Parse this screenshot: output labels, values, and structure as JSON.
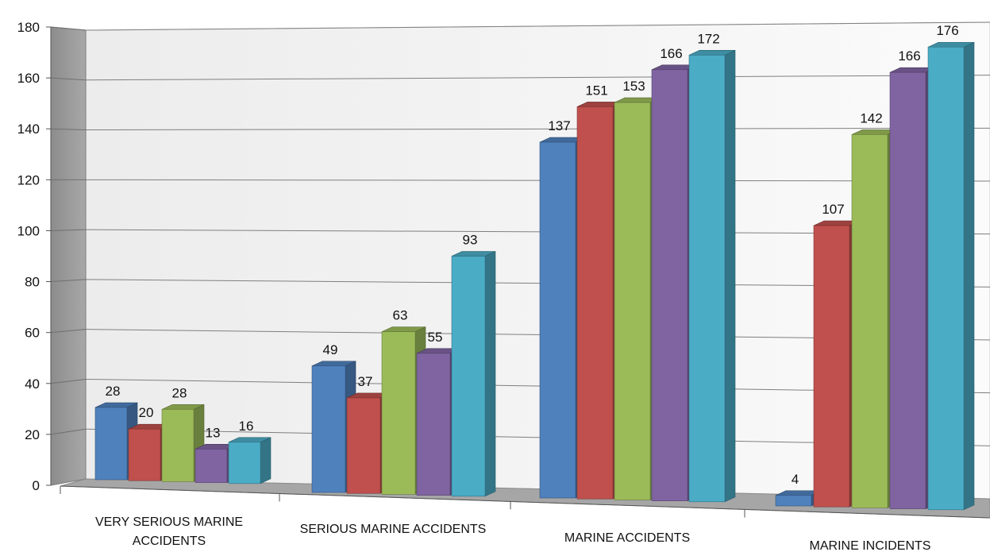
{
  "chart_data": {
    "type": "bar",
    "style": "3d-clustered-column",
    "categories": [
      [
        "VERY SERIOUS MARINE",
        "ACCIDENTS"
      ],
      [
        "SERIOUS MARINE ACCIDENTS"
      ],
      [
        "MARINE ACCIDENTS"
      ],
      [
        "MARINE INCIDENTS"
      ]
    ],
    "series": [
      {
        "values": [
          28,
          49,
          137,
          4
        ],
        "color": "#4f81bd"
      },
      {
        "values": [
          20,
          37,
          151,
          107
        ],
        "color": "#c0504d"
      },
      {
        "values": [
          28,
          63,
          153,
          142
        ],
        "color": "#9bbb59"
      },
      {
        "values": [
          13,
          55,
          166,
          166
        ],
        "color": "#8064a2"
      },
      {
        "values": [
          16,
          93,
          172,
          176
        ],
        "color": "#4bacc6"
      }
    ],
    "ylim": [
      0,
      180
    ],
    "yticks": [
      0,
      20,
      40,
      60,
      80,
      100,
      120,
      140,
      160,
      180
    ],
    "data_labels": true,
    "grid": true,
    "legend": "none",
    "title": "",
    "xlabel": "",
    "ylabel": ""
  }
}
